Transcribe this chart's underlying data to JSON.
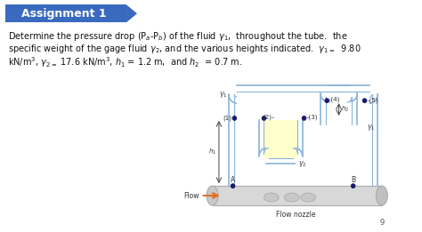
{
  "title": "Assignment 1",
  "title_bg": "#3a6abf",
  "title_text_color": "#ffffff",
  "bg_color": "#ffffff",
  "body_text_line1": "Determine the pressure drop (P$_a$-P$_b$) of the fluid $\\gamma_1$,  throughout the tube.  the",
  "body_text_line2": "specific weight of the gage fluid $\\gamma_2$, and the various heights indicated.  $\\gamma_{1=}$  9.80",
  "body_text_line3": "kN/m$^3$, $\\gamma_{2=}$ 17.6 kN/m$^3$, $h_1$ = 1.2 m,  and $h_2$  = 0.7 m.",
  "page_number": "9",
  "tube_outer_color": "#8ab4d8",
  "tube_inner_color": "#ddeeff",
  "fluid_fill_color": "#ffffcc",
  "pipe_fill_color": "#d8d8d8",
  "pipe_edge_color": "#aaaaaa",
  "flow_arrow_color": "#e07020",
  "dot_color": "#1a1a6e",
  "label_color": "#333333",
  "dim_color": "#444444"
}
